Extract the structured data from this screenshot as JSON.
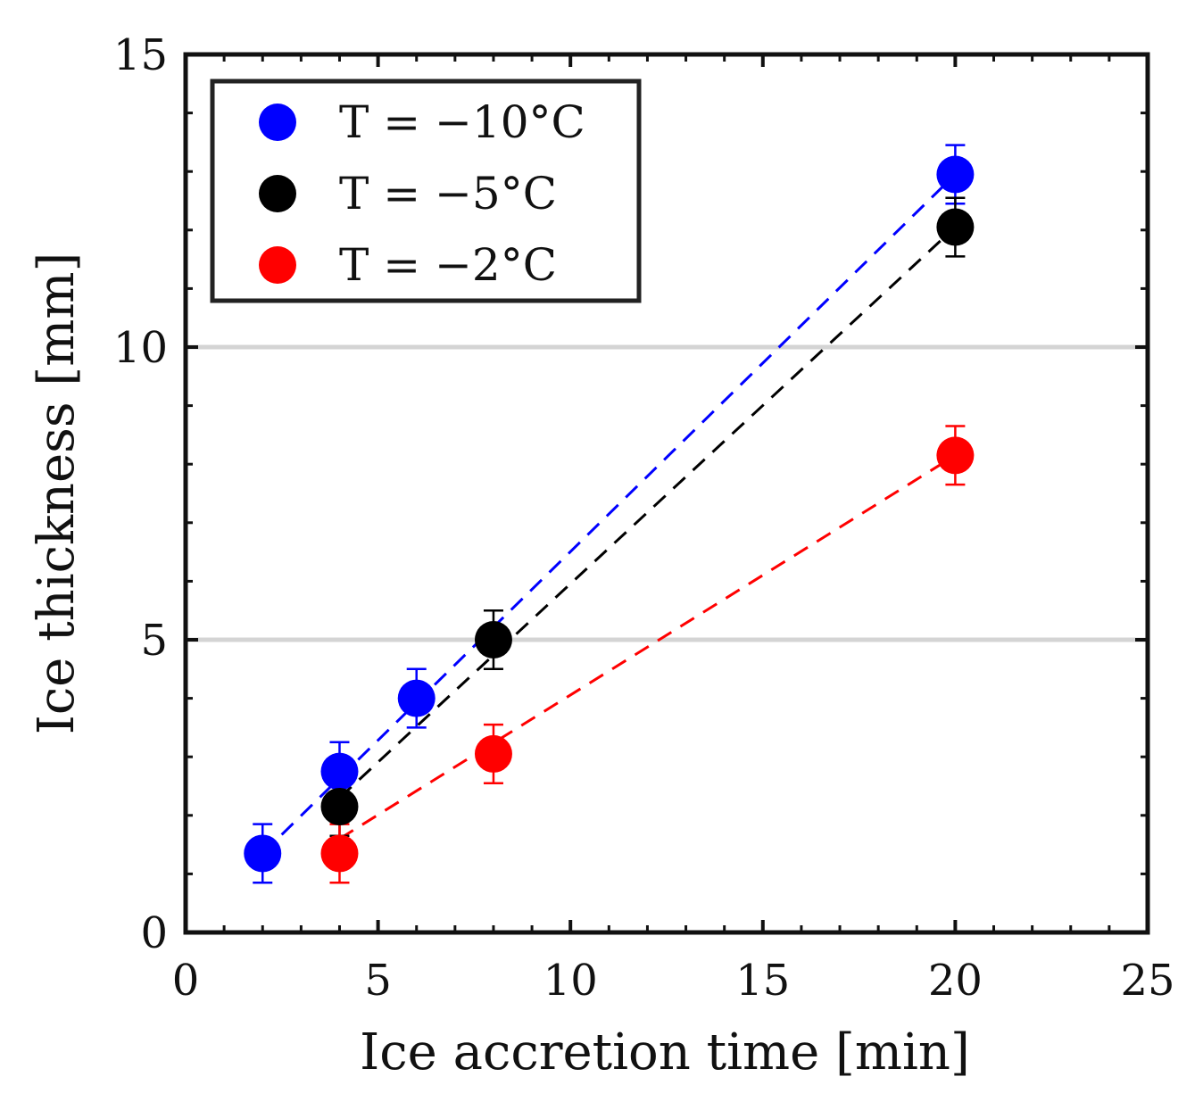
{
  "chart_data": {
    "type": "scatter",
    "xlabel": "Ice accretion time [min]",
    "ylabel": "Ice thickness [mm]",
    "xlim": [
      0,
      25
    ],
    "ylim": [
      0,
      15
    ],
    "xticks": [
      "0",
      "5",
      "10",
      "15",
      "20",
      "25"
    ],
    "yticks": [
      "0",
      "5",
      "10",
      "15"
    ],
    "xtick_values": [
      0,
      5,
      10,
      15,
      20,
      25
    ],
    "ytick_values": [
      0,
      5,
      10,
      15
    ],
    "gridlines_y": [
      5,
      10
    ],
    "legend_position": "top-left",
    "series": [
      {
        "name": "T = −10°C",
        "color": "#0000ff",
        "points": [
          {
            "x": 2,
            "y": 1.35,
            "err": 0.5
          },
          {
            "x": 4,
            "y": 2.75,
            "err": 0.5
          },
          {
            "x": 6,
            "y": 4.0,
            "err": 0.5
          },
          {
            "x": 20,
            "y": 12.95,
            "err": 0.5
          }
        ],
        "fit": [
          [
            2,
            1.35
          ],
          [
            20,
            12.95
          ]
        ]
      },
      {
        "name": "T = −5°C",
        "color": "#000000",
        "points": [
          {
            "x": 4,
            "y": 2.15,
            "err": 0.5
          },
          {
            "x": 8,
            "y": 5.0,
            "err": 0.5
          },
          {
            "x": 20,
            "y": 12.05,
            "err": 0.5
          }
        ],
        "fit": [
          [
            4,
            2.3
          ],
          [
            20,
            12.05
          ]
        ]
      },
      {
        "name": "T = −2°C",
        "color": "#ff0000",
        "points": [
          {
            "x": 4,
            "y": 1.35,
            "err": 0.5
          },
          {
            "x": 8,
            "y": 3.05,
            "err": 0.5
          },
          {
            "x": 20,
            "y": 8.15,
            "err": 0.5
          }
        ],
        "fit": [
          [
            4,
            1.6
          ],
          [
            20,
            8.15
          ]
        ]
      }
    ]
  }
}
